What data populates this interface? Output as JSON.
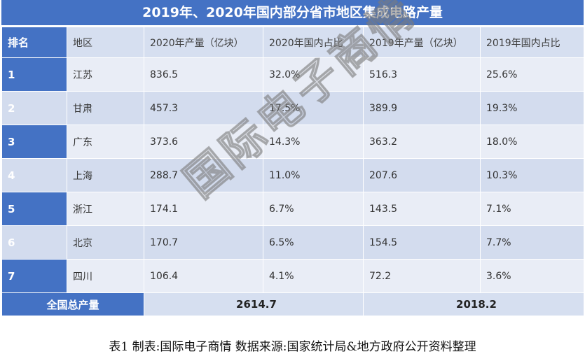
{
  "title": "2019年、2020年国内部分省市地区集成电路产量",
  "headers": [
    "排名",
    "地区",
    "2020年产量（亿块）",
    "2020年国内占比",
    "2019年产量（亿块）",
    "2019年国内占比"
  ],
  "rows": [
    {
      "rank": "1",
      "region": "江苏",
      "p2020": "836.5",
      "s2020": "32.0%",
      "p2019": "516.3",
      "s2019": "25.6%"
    },
    {
      "rank": "2",
      "region": "甘肃",
      "p2020": "457.3",
      "s2020": "17.5%",
      "p2019": "389.9",
      "s2019": "19.3%"
    },
    {
      "rank": "3",
      "region": "广东",
      "p2020": "373.6",
      "s2020": "14.3%",
      "p2019": "363.2",
      "s2019": "18.0%"
    },
    {
      "rank": "4",
      "region": "上海",
      "p2020": "288.7",
      "s2020": "11.0%",
      "p2019": "207.6",
      "s2019": "10.3%"
    },
    {
      "rank": "5",
      "region": "浙江",
      "p2020": "174.1",
      "s2020": "6.7%",
      "p2019": "143.5",
      "s2019": "7.1%"
    },
    {
      "rank": "6",
      "region": "北京",
      "p2020": "170.7",
      "s2020": "6.5%",
      "p2019": "154.5",
      "s2019": "7.7%"
    },
    {
      "rank": "7",
      "region": "四川",
      "p2020": "106.4",
      "s2020": "4.1%",
      "p2019": "72.2",
      "s2019": "3.6%"
    }
  ],
  "total": {
    "label": "全国总产量",
    "v2020": "2614.7",
    "v2019": "2018.2"
  },
  "caption": "表1 制表:国际电子商情 数据来源:国家统计局&地方政府公开资料整理",
  "watermark": "国际电子商情",
  "colors": {
    "header_blue": "#4472c4",
    "header_light": "#d6dff0",
    "row_light": "#e9edf6",
    "row_alt": "#d3dcee"
  },
  "chart_data": {
    "type": "table",
    "title": "2019年、2020年国内部分省市地区集成电路产量",
    "columns": [
      "排名",
      "地区",
      "2020年产量（亿块）",
      "2020年国内占比",
      "2019年产量（亿块）",
      "2019年国内占比"
    ],
    "rows": [
      [
        1,
        "江苏",
        836.5,
        "32.0%",
        516.3,
        "25.6%"
      ],
      [
        2,
        "甘肃",
        457.3,
        "17.5%",
        389.9,
        "19.3%"
      ],
      [
        3,
        "广东",
        373.6,
        "14.3%",
        363.2,
        "18.0%"
      ],
      [
        4,
        "上海",
        288.7,
        "11.0%",
        207.6,
        "10.3%"
      ],
      [
        5,
        "浙江",
        174.1,
        "6.7%",
        143.5,
        "7.1%"
      ],
      [
        6,
        "北京",
        170.7,
        "6.5%",
        154.5,
        "7.7%"
      ],
      [
        7,
        "四川",
        106.4,
        "4.1%",
        72.2,
        "3.6%"
      ]
    ],
    "totals": {
      "全国总产量": {
        "2020": 2614.7,
        "2019": 2018.2
      }
    }
  }
}
